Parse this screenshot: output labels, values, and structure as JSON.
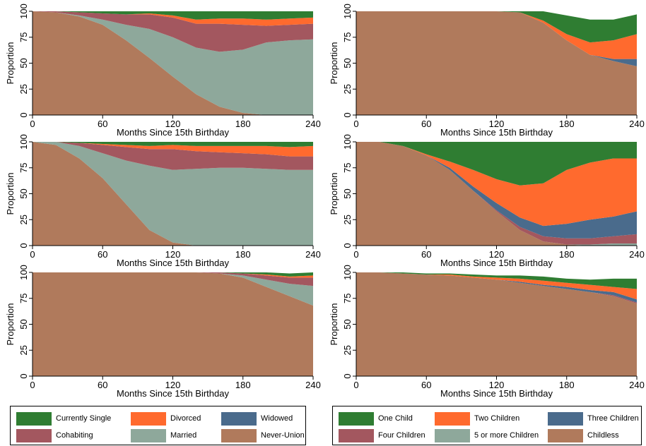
{
  "colors": {
    "single": "#2f7d32",
    "divorced": "#ff6a2e",
    "widowed": "#4a6b8c",
    "cohabiting": "#a3575f",
    "married": "#8ea89b",
    "never": "#b07a5c",
    "one_child": "#2f7d32",
    "two_children": "#ff6a2e",
    "three_children": "#4a6b8c",
    "four_children": "#a3575f",
    "five_plus": "#8ea89b",
    "childless": "#b07a5c"
  },
  "legends": {
    "union": {
      "items": [
        {
          "label": "Currently Single",
          "color": "#2f7d32"
        },
        {
          "label": "Divorced",
          "color": "#ff6a2e"
        },
        {
          "label": "Widowed",
          "color": "#4a6b8c"
        },
        {
          "label": "Cohabiting",
          "color": "#a3575f"
        },
        {
          "label": "Married",
          "color": "#8ea89b"
        },
        {
          "label": "Never-Union",
          "color": "#b07a5c"
        }
      ]
    },
    "fertility": {
      "items": [
        {
          "label": "One Child",
          "color": "#2f7d32"
        },
        {
          "label": "Two Children",
          "color": "#ff6a2e"
        },
        {
          "label": "Three Children",
          "color": "#4a6b8c"
        },
        {
          "label": "Four Children",
          "color": "#a3575f"
        },
        {
          "label": "5 or more Children",
          "color": "#8ea89b"
        },
        {
          "label": "Childless",
          "color": "#b07a5c"
        }
      ]
    }
  },
  "chart_data": [
    {
      "type": "area",
      "xlabel": "Months Since 15th Birthday",
      "ylabel": "Proportion",
      "xlim": [
        0,
        240
      ],
      "ylim": [
        0,
        100
      ],
      "xticks": [
        0,
        60,
        120,
        180,
        240
      ],
      "yticks": [
        0,
        25,
        50,
        75,
        100
      ],
      "x": [
        0,
        20,
        40,
        60,
        80,
        100,
        120,
        140,
        160,
        180,
        200,
        220,
        240
      ],
      "stack_order": [
        "Never-Union",
        "Married",
        "Cohabiting",
        "Widowed",
        "Divorced",
        "Currently Single"
      ],
      "series": [
        {
          "name": "Never-Union",
          "color": "#b07a5c",
          "values": [
            100,
            99,
            95,
            87,
            72,
            55,
            37,
            20,
            8,
            2,
            0,
            0,
            0
          ]
        },
        {
          "name": "Married",
          "color": "#8ea89b",
          "values": [
            0,
            0,
            1,
            5,
            15,
            28,
            38,
            45,
            53,
            61,
            70,
            72,
            73
          ]
        },
        {
          "name": "Cohabiting",
          "color": "#a3575f",
          "values": [
            0,
            1,
            3,
            6,
            10,
            14,
            19,
            23,
            27,
            24,
            16,
            15,
            15
          ]
        },
        {
          "name": "Widowed",
          "color": "#4a6b8c",
          "values": [
            0,
            0,
            0,
            0,
            0,
            0,
            0,
            0,
            0,
            0,
            0,
            0,
            0
          ]
        },
        {
          "name": "Divorced",
          "color": "#ff6a2e",
          "values": [
            0,
            0,
            0,
            0,
            0,
            1,
            2,
            4,
            5,
            6,
            6,
            6,
            6
          ]
        },
        {
          "name": "Currently Single",
          "color": "#2f7d32",
          "values": [
            0,
            0,
            1,
            2,
            3,
            2,
            4,
            8,
            7,
            7,
            8,
            7,
            6
          ]
        }
      ]
    },
    {
      "type": "area",
      "xlabel": "Months Since 15th Birthday",
      "ylabel": "Proportion",
      "xlim": [
        0,
        240
      ],
      "ylim": [
        0,
        100
      ],
      "xticks": [
        0,
        60,
        120,
        180,
        240
      ],
      "yticks": [
        0,
        25,
        50,
        75,
        100
      ],
      "x": [
        0,
        20,
        40,
        60,
        80,
        100,
        120,
        140,
        160,
        180,
        200,
        220,
        240
      ],
      "stack_order": [
        "Childless",
        "5 or more Children",
        "Four Children",
        "Three Children",
        "Two Children",
        "One Child"
      ],
      "series": [
        {
          "name": "Childless",
          "color": "#b07a5c",
          "values": [
            100,
            100,
            100,
            100,
            100,
            100,
            100,
            99,
            89,
            72,
            58,
            52,
            47
          ]
        },
        {
          "name": "5 or more Children",
          "color": "#8ea89b",
          "values": [
            0,
            0,
            0,
            0,
            0,
            0,
            0,
            0,
            0,
            0,
            0,
            0,
            0
          ]
        },
        {
          "name": "Four Children",
          "color": "#a3575f",
          "values": [
            0,
            0,
            0,
            0,
            0,
            0,
            0,
            0,
            0,
            0,
            0,
            0,
            0
          ]
        },
        {
          "name": "Three Children",
          "color": "#4a6b8c",
          "values": [
            0,
            0,
            0,
            0,
            0,
            0,
            0,
            0,
            0,
            0,
            0,
            2,
            7
          ]
        },
        {
          "name": "Two Children",
          "color": "#ff6a2e",
          "values": [
            0,
            0,
            0,
            0,
            0,
            0,
            0,
            0,
            2,
            6,
            12,
            18,
            24
          ]
        },
        {
          "name": "One Child",
          "color": "#2f7d32",
          "values": [
            0,
            0,
            0,
            0,
            0,
            0,
            0,
            1,
            9,
            18,
            22,
            20,
            19
          ]
        }
      ]
    },
    {
      "type": "area",
      "xlabel": "Months Since 15th Birthday",
      "ylabel": "Proportion",
      "xlim": [
        0,
        240
      ],
      "ylim": [
        0,
        100
      ],
      "xticks": [
        0,
        60,
        120,
        180,
        240
      ],
      "yticks": [
        0,
        25,
        50,
        75,
        100
      ],
      "x": [
        0,
        20,
        40,
        60,
        80,
        100,
        120,
        140,
        160,
        180,
        200,
        220,
        240
      ],
      "stack_order": [
        "Never-Union",
        "Married",
        "Cohabiting",
        "Widowed",
        "Divorced",
        "Currently Single"
      ],
      "series": [
        {
          "name": "Never-Union",
          "color": "#b07a5c",
          "values": [
            100,
            97,
            84,
            65,
            40,
            15,
            3,
            0,
            0,
            0,
            0,
            0,
            0
          ]
        },
        {
          "name": "Married",
          "color": "#8ea89b",
          "values": [
            0,
            3,
            12,
            24,
            42,
            62,
            70,
            74,
            75,
            75,
            74,
            73,
            73
          ]
        },
        {
          "name": "Cohabiting",
          "color": "#a3575f",
          "values": [
            0,
            0,
            3,
            8,
            13,
            16,
            20,
            17,
            15,
            14,
            14,
            13,
            13
          ]
        },
        {
          "name": "Widowed",
          "color": "#4a6b8c",
          "values": [
            0,
            0,
            0,
            0,
            0,
            0,
            0,
            0,
            0,
            0,
            0,
            0,
            0
          ]
        },
        {
          "name": "Divorced",
          "color": "#ff6a2e",
          "values": [
            0,
            0,
            0,
            1,
            2,
            3,
            4,
            5,
            6,
            7,
            8,
            9,
            10
          ]
        },
        {
          "name": "Currently Single",
          "color": "#2f7d32",
          "values": [
            0,
            0,
            1,
            2,
            3,
            4,
            3,
            4,
            4,
            4,
            4,
            5,
            4
          ]
        }
      ]
    },
    {
      "type": "area",
      "xlabel": "Months Since 15th Birthday",
      "ylabel": "Proportion",
      "xlim": [
        0,
        240
      ],
      "ylim": [
        0,
        100
      ],
      "xticks": [
        0,
        60,
        120,
        180,
        240
      ],
      "yticks": [
        0,
        25,
        50,
        75,
        100
      ],
      "x": [
        0,
        20,
        40,
        60,
        80,
        100,
        120,
        140,
        160,
        180,
        200,
        220,
        240
      ],
      "stack_order": [
        "Childless",
        "5 or more Children",
        "Four Children",
        "Three Children",
        "Two Children",
        "One Child"
      ],
      "series": [
        {
          "name": "Childless",
          "color": "#b07a5c",
          "values": [
            100,
            100,
            96,
            87,
            73,
            53,
            33,
            15,
            4,
            1,
            0,
            0,
            0
          ]
        },
        {
          "name": "5 or more Children",
          "color": "#8ea89b",
          "values": [
            0,
            0,
            0,
            0,
            0,
            0,
            0,
            0,
            0,
            0,
            1,
            2,
            2
          ]
        },
        {
          "name": "Four Children",
          "color": "#a3575f",
          "values": [
            0,
            0,
            0,
            0,
            0,
            0,
            1,
            3,
            5,
            6,
            6,
            7,
            9
          ]
        },
        {
          "name": "Three Children",
          "color": "#4a6b8c",
          "values": [
            0,
            0,
            0,
            0,
            2,
            4,
            7,
            9,
            10,
            14,
            18,
            19,
            22
          ]
        },
        {
          "name": "Two Children",
          "color": "#ff6a2e",
          "values": [
            0,
            0,
            0,
            1,
            6,
            16,
            23,
            31,
            41,
            52,
            55,
            56,
            51
          ]
        },
        {
          "name": "One Child",
          "color": "#2f7d32",
          "values": [
            0,
            0,
            4,
            12,
            19,
            27,
            36,
            45,
            40,
            27,
            20,
            16,
            16
          ]
        }
      ]
    },
    {
      "type": "area",
      "xlabel": "Months Since 15th Birthday",
      "ylabel": "Proportion",
      "xlim": [
        0,
        240
      ],
      "ylim": [
        0,
        100
      ],
      "xticks": [
        0,
        60,
        120,
        180,
        240
      ],
      "yticks": [
        0,
        25,
        50,
        75,
        100
      ],
      "x": [
        0,
        20,
        40,
        60,
        80,
        100,
        120,
        140,
        160,
        180,
        200,
        220,
        240
      ],
      "stack_order": [
        "Never-Union",
        "Married",
        "Cohabiting",
        "Widowed",
        "Divorced",
        "Currently Single"
      ],
      "series": [
        {
          "name": "Never-Union",
          "color": "#b07a5c",
          "values": [
            100,
            100,
            100,
            100,
            100,
            100,
            100,
            100,
            99,
            95,
            86,
            77,
            68
          ]
        },
        {
          "name": "Married",
          "color": "#8ea89b",
          "values": [
            0,
            0,
            0,
            0,
            0,
            0,
            0,
            0,
            0,
            2,
            7,
            12,
            19
          ]
        },
        {
          "name": "Cohabiting",
          "color": "#a3575f",
          "values": [
            0,
            0,
            0,
            0,
            0,
            0,
            0,
            0,
            1,
            2,
            4,
            6,
            8
          ]
        },
        {
          "name": "Widowed",
          "color": "#4a6b8c",
          "values": [
            0,
            0,
            0,
            0,
            0,
            0,
            0,
            0,
            0,
            0,
            0,
            0,
            0
          ]
        },
        {
          "name": "Divorced",
          "color": "#ff6a2e",
          "values": [
            0,
            0,
            0,
            0,
            0,
            0,
            0,
            0,
            0,
            0,
            1,
            1,
            2
          ]
        },
        {
          "name": "Currently Single",
          "color": "#2f7d32",
          "values": [
            0,
            0,
            0,
            0,
            0,
            0,
            0,
            0,
            0,
            1,
            2,
            3,
            3
          ]
        }
      ]
    },
    {
      "type": "area",
      "xlabel": "Months Since 15th Birthday",
      "ylabel": "Proportion",
      "xlim": [
        0,
        240
      ],
      "ylim": [
        0,
        100
      ],
      "xticks": [
        0,
        60,
        120,
        180,
        240
      ],
      "yticks": [
        0,
        25,
        50,
        75,
        100
      ],
      "x": [
        0,
        20,
        40,
        60,
        80,
        100,
        120,
        140,
        160,
        180,
        200,
        220,
        240
      ],
      "stack_order": [
        "Childless",
        "5 or more Children",
        "Four Children",
        "Three Children",
        "Two Children",
        "One Child"
      ],
      "series": [
        {
          "name": "Childless",
          "color": "#b07a5c",
          "values": [
            100,
            100,
            99,
            98,
            97,
            95,
            93,
            90,
            87,
            84,
            81,
            77,
            70
          ]
        },
        {
          "name": "5 or more Children",
          "color": "#8ea89b",
          "values": [
            0,
            0,
            0,
            0,
            0,
            0,
            0,
            0,
            0,
            0,
            0,
            0,
            0
          ]
        },
        {
          "name": "Four Children",
          "color": "#a3575f",
          "values": [
            0,
            0,
            0,
            0,
            0,
            0,
            0,
            0,
            0,
            0,
            0,
            1,
            1
          ]
        },
        {
          "name": "Three Children",
          "color": "#4a6b8c",
          "values": [
            0,
            0,
            0,
            0,
            0,
            0,
            0,
            1,
            1,
            2,
            2,
            3,
            3
          ]
        },
        {
          "name": "Two Children",
          "color": "#ff6a2e",
          "values": [
            0,
            0,
            0,
            0,
            1,
            1,
            2,
            3,
            4,
            4,
            5,
            5,
            10
          ]
        },
        {
          "name": "One Child",
          "color": "#2f7d32",
          "values": [
            0,
            0,
            1,
            1,
            1,
            2,
            2,
            3,
            4,
            4,
            5,
            8,
            10
          ]
        }
      ]
    }
  ]
}
